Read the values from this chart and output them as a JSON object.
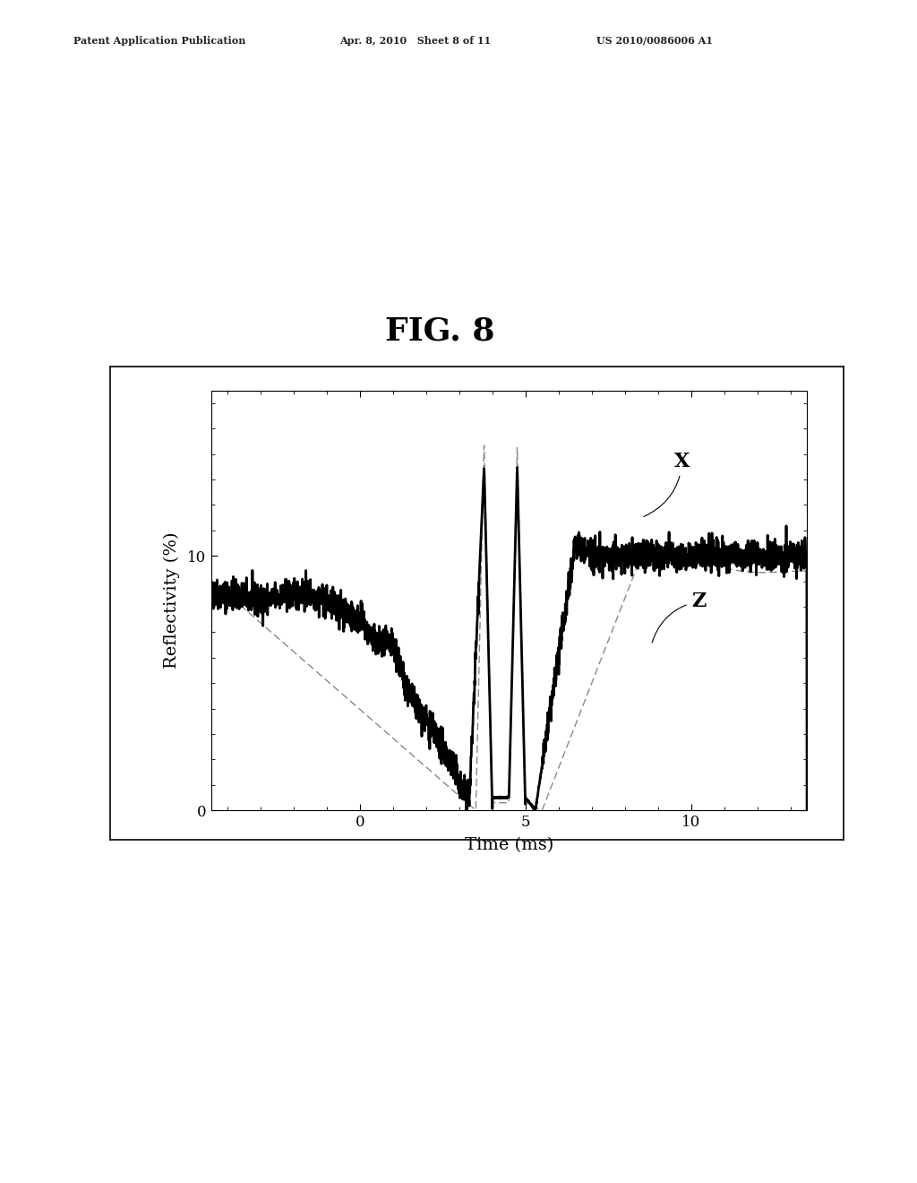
{
  "fig_label": "FIG. 8",
  "patent_left": "Patent Application Publication",
  "patent_mid": "Apr. 8, 2010   Sheet 8 of 11",
  "patent_right": "US 2010/0086006 A1",
  "xlabel": "Time (ms)",
  "ylabel": "Reflectivity (%)",
  "xlim": [
    -4.5,
    13.5
  ],
  "ylim": [
    0,
    16.5
  ],
  "label_X": "X",
  "label_Z": "Z",
  "background_color": "#ffffff",
  "header_fontsize": 8,
  "fig_label_fontsize": 26,
  "axis_label_fontsize": 14,
  "tick_fontsize": 12,
  "annot_fontsize": 16
}
